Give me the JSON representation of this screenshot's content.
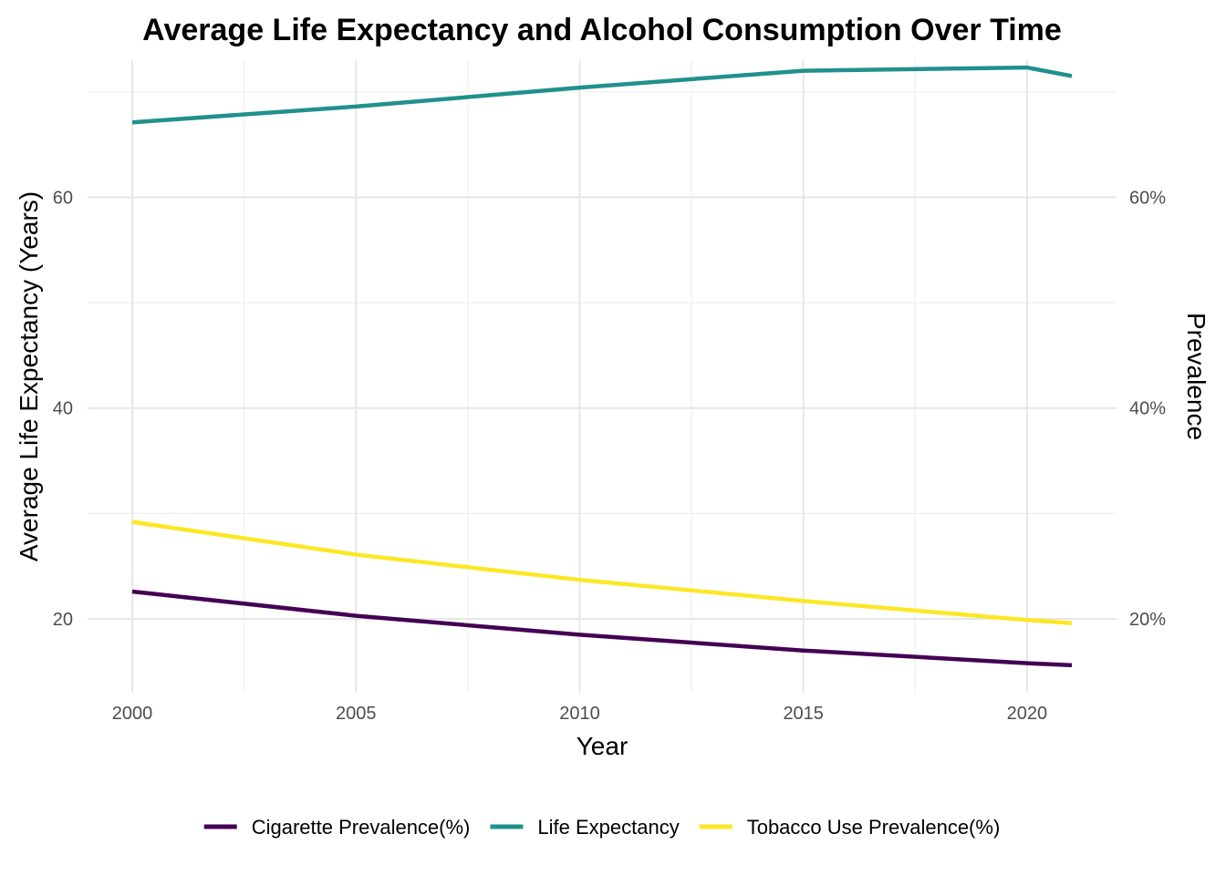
{
  "chart_data": {
    "type": "line",
    "title": "Average Life Expectancy and Alcohol Consumption Over Time",
    "xlabel": "Year",
    "ylabel": "Average Life Expectancy (Years)",
    "y2label": "Prevalence",
    "xlim": [
      1999,
      2022
    ],
    "ylim": [
      13,
      73
    ],
    "x_ticks": [
      2000,
      2005,
      2010,
      2015,
      2020
    ],
    "x_tick_labels": [
      "2000",
      "2005",
      "2010",
      "2015",
      "2020"
    ],
    "y_ticks": [
      20,
      40,
      60
    ],
    "y_tick_labels": [
      "20",
      "40",
      "60"
    ],
    "y2_ticks": [
      20,
      40,
      60
    ],
    "y2_tick_labels": [
      "20%",
      "40%",
      "60%"
    ],
    "grid": true,
    "legend_position": "bottom",
    "x": [
      2000,
      2005,
      2010,
      2015,
      2020,
      2021
    ],
    "series": [
      {
        "name": "Cigarette Prevalence(%)",
        "color": "#440154",
        "values": [
          22.6,
          20.3,
          18.5,
          17.0,
          15.8,
          15.6
        ]
      },
      {
        "name": "Life Expectancy",
        "color": "#21908C",
        "values": [
          67.1,
          68.6,
          70.4,
          72.0,
          72.3,
          71.5
        ]
      },
      {
        "name": "Tobacco Use Prevalence(%)",
        "color": "#FDE725",
        "values": [
          29.2,
          26.1,
          23.7,
          21.7,
          19.9,
          19.6
        ]
      }
    ]
  }
}
